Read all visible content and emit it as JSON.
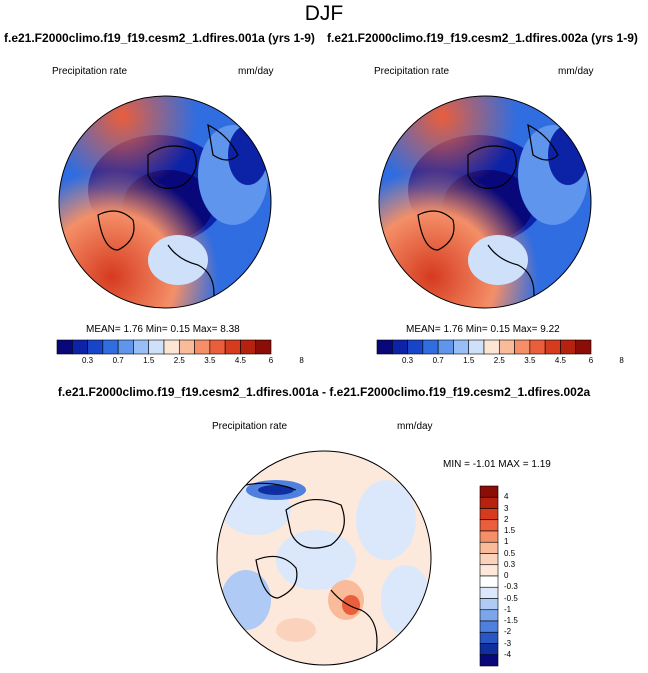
{
  "figure_title": "DJF",
  "panels": [
    {
      "case_title": "f.e21.F2000climo.f19_f19.cesm2_1.dfires.001a (yrs 1-9)",
      "var_label": "Precipitation rate",
      "units": "mm/day",
      "stats": "MEAN=  1.76  Min=  0.15  Max=  8.38"
    },
    {
      "case_title": "f.e21.F2000climo.f19_f19.cesm2_1.dfires.002a (yrs 1-9)",
      "var_label": "Precipitation rate",
      "units": "mm/day",
      "stats": "MEAN=  1.76  Min=  0.15  Max=  9.22"
    }
  ],
  "diff_panel": {
    "title": "f.e21.F2000climo.f19_f19.cesm2_1.dfires.001a - f.e21.F2000climo.f19_f19.cesm2_1.dfires.002a",
    "var_label": "Precipitation rate",
    "units": "mm/day",
    "stats": "MIN = -1.01 MAX =  1.19"
  },
  "colorbar_abs": {
    "labels": [
      "0.3",
      "0.7",
      "1.5",
      "2.5",
      "3.5",
      "4.5",
      "6",
      "8"
    ],
    "colors": [
      "#08087a",
      "#0c23a8",
      "#1744c8",
      "#2f6de0",
      "#5f95ec",
      "#98bef5",
      "#cfe0fa",
      "#fde5d6",
      "#f9bb9a",
      "#f48f68",
      "#ea5e3c",
      "#d63a1f",
      "#b7220f",
      "#8c0c06"
    ]
  },
  "colorbar_diff": {
    "labels": [
      "4",
      "3",
      "2",
      "1.5",
      "1",
      "0.5",
      "0.3",
      "0",
      "-0.3",
      "-0.5",
      "-1",
      "-1.5",
      "-2",
      "-3",
      "-4"
    ],
    "colors": [
      "#8c0c06",
      "#b7220f",
      "#d63a1f",
      "#ea5e3c",
      "#f48f68",
      "#f9bb9a",
      "#fbd3bd",
      "#fde8dc",
      "#ffffff",
      "#dbe8fb",
      "#aecaf5",
      "#7ba6ec",
      "#4f80de",
      "#2856c4",
      "#0f2fa0",
      "#08087a"
    ]
  }
}
